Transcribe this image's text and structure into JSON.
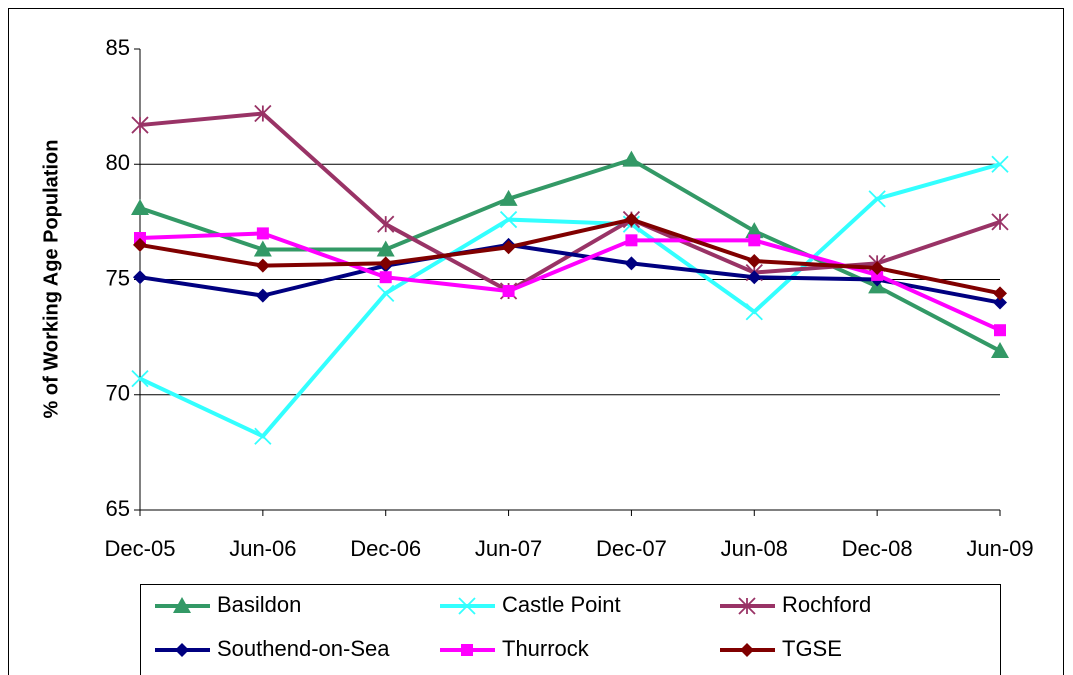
{
  "chart_data": {
    "type": "line",
    "y_label": "% of Working Age Population",
    "categories": [
      "Dec-05",
      "Jun-06",
      "Dec-06",
      "Jun-07",
      "Dec-07",
      "Jun-08",
      "Dec-08",
      "Jun-09"
    ],
    "ylim": [
      65,
      85
    ],
    "yticks": [
      65,
      70,
      75,
      80,
      85
    ],
    "grid": true,
    "series": [
      {
        "name": "Basildon",
        "color": "#339966",
        "marker": "triangle",
        "values": [
          78.1,
          76.3,
          76.3,
          78.5,
          80.2,
          77.1,
          74.7,
          71.9
        ]
      },
      {
        "name": "Castle Point",
        "color": "#33ffff",
        "marker": "x",
        "values": [
          70.7,
          68.2,
          74.4,
          77.6,
          77.4,
          73.6,
          78.5,
          80.0
        ]
      },
      {
        "name": "Rochford",
        "color": "#993366",
        "marker": "star",
        "values": [
          81.7,
          82.2,
          77.4,
          74.5,
          77.6,
          75.3,
          75.7,
          77.5
        ]
      },
      {
        "name": "Southend-on-Sea",
        "color": "#000080",
        "marker": "diamond",
        "values": [
          75.1,
          74.3,
          75.6,
          76.5,
          75.7,
          75.1,
          75.0,
          74.0
        ]
      },
      {
        "name": "Thurrock",
        "color": "#ff00ff",
        "marker": "square",
        "values": [
          76.8,
          77.0,
          75.1,
          74.5,
          76.7,
          76.7,
          75.2,
          72.8
        ]
      },
      {
        "name": "TGSE",
        "color": "#800000",
        "marker": "diamond",
        "values": [
          76.5,
          75.6,
          75.7,
          76.4,
          77.6,
          75.8,
          75.5,
          74.4
        ]
      }
    ]
  }
}
